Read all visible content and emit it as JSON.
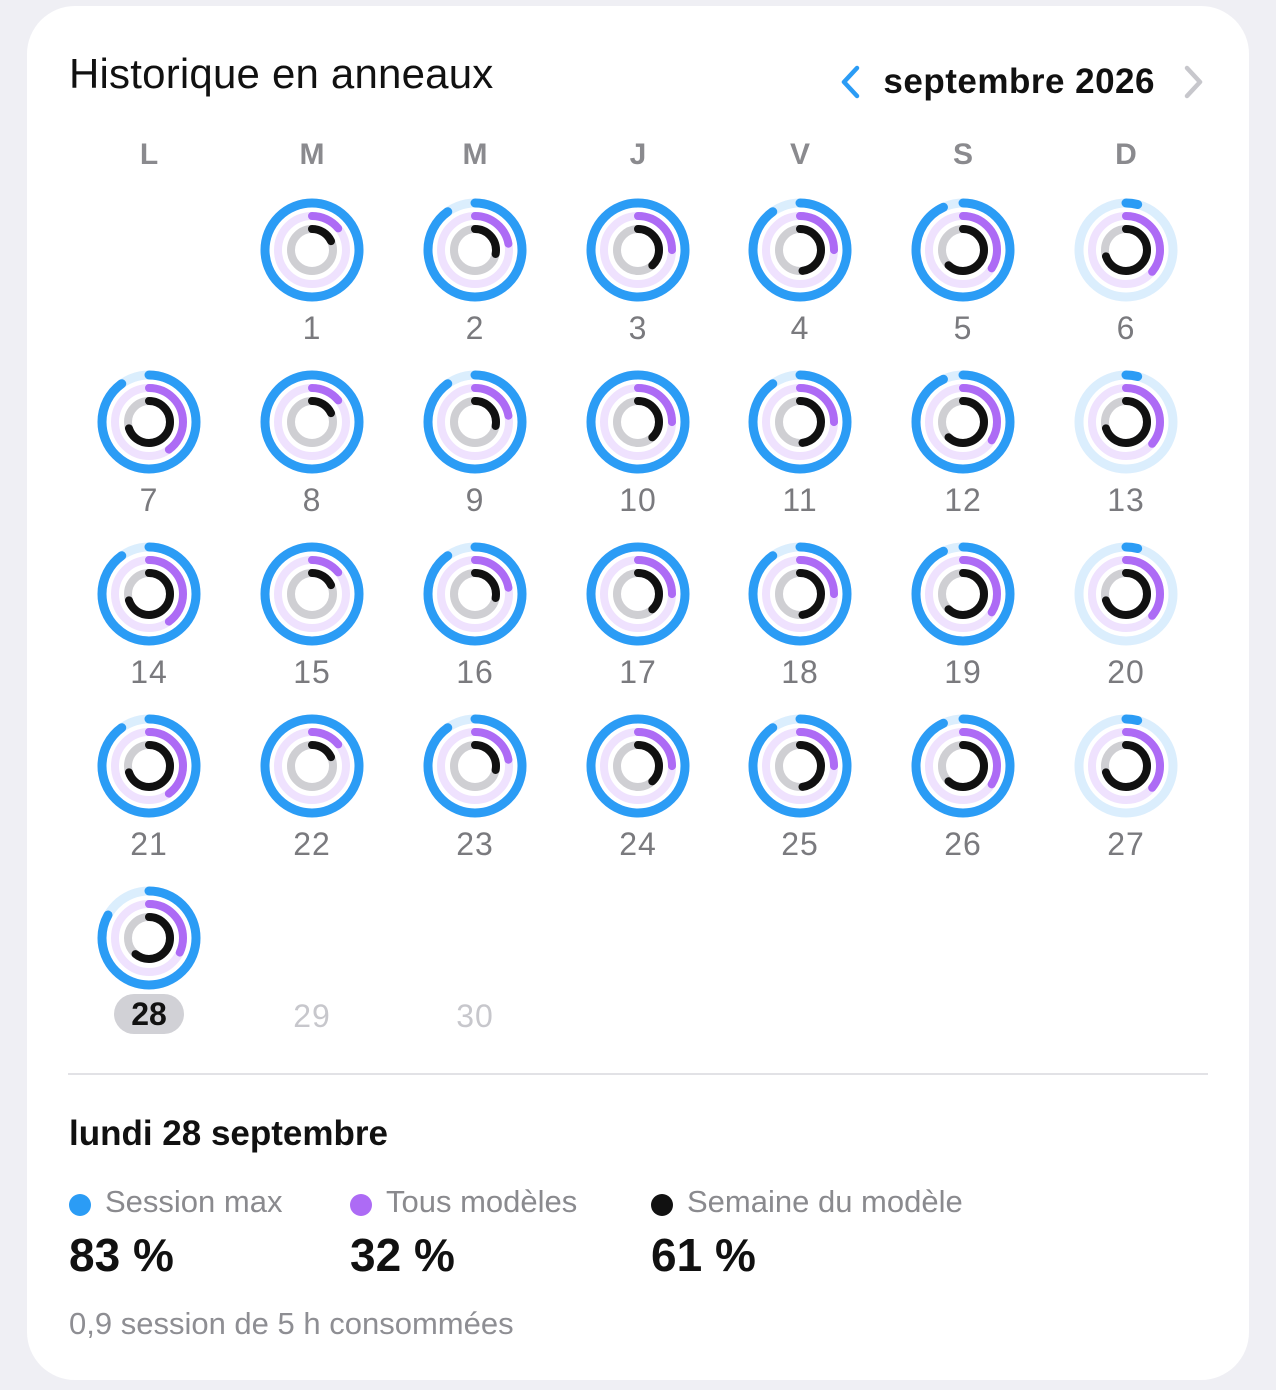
{
  "card": {
    "title": "Historique en anneaux",
    "month_label": "septembre 2026",
    "prev_icon": "chevron-left-icon",
    "next_icon": "chevron-right-icon"
  },
  "weekdays": [
    "L",
    "M",
    "M",
    "J",
    "V",
    "S",
    "D"
  ],
  "colors": {
    "session": "#2b9cf5",
    "session_track": "#dbeefd",
    "models": "#ad6bf5",
    "models_track": "#efe2fe",
    "week": "#111111",
    "week_track": "#cfcfd3"
  },
  "days": [
    {
      "day": "1",
      "session": 1.0,
      "models": 0.14,
      "week": 0.18
    },
    {
      "day": "2",
      "session": 0.9,
      "models": 0.22,
      "week": 0.28
    },
    {
      "day": "3",
      "session": 1.0,
      "models": 0.25,
      "week": 0.38
    },
    {
      "day": "4",
      "session": 0.9,
      "models": 0.25,
      "week": 0.48
    },
    {
      "day": "5",
      "session": 0.93,
      "models": 0.34,
      "week": 0.62
    },
    {
      "day": "6",
      "session": 0.04,
      "models": 0.36,
      "week": 0.7
    },
    {
      "day": "7",
      "session": 0.9,
      "models": 0.4,
      "week": 0.7
    },
    {
      "day": "8",
      "session": 1.0,
      "models": 0.14,
      "week": 0.18
    },
    {
      "day": "9",
      "session": 0.9,
      "models": 0.22,
      "week": 0.28
    },
    {
      "day": "10",
      "session": 1.0,
      "models": 0.25,
      "week": 0.38
    },
    {
      "day": "11",
      "session": 0.9,
      "models": 0.25,
      "week": 0.48
    },
    {
      "day": "12",
      "session": 0.93,
      "models": 0.34,
      "week": 0.62
    },
    {
      "day": "13",
      "session": 0.04,
      "models": 0.36,
      "week": 0.7
    },
    {
      "day": "14",
      "session": 0.9,
      "models": 0.4,
      "week": 0.7
    },
    {
      "day": "15",
      "session": 1.0,
      "models": 0.14,
      "week": 0.18
    },
    {
      "day": "16",
      "session": 0.9,
      "models": 0.22,
      "week": 0.28
    },
    {
      "day": "17",
      "session": 1.0,
      "models": 0.25,
      "week": 0.38
    },
    {
      "day": "18",
      "session": 0.9,
      "models": 0.25,
      "week": 0.48
    },
    {
      "day": "19",
      "session": 0.93,
      "models": 0.34,
      "week": 0.62
    },
    {
      "day": "20",
      "session": 0.04,
      "models": 0.36,
      "week": 0.7
    },
    {
      "day": "21",
      "session": 0.9,
      "models": 0.4,
      "week": 0.7
    },
    {
      "day": "22",
      "session": 1.0,
      "models": 0.14,
      "week": 0.18
    },
    {
      "day": "23",
      "session": 0.9,
      "models": 0.22,
      "week": 0.28
    },
    {
      "day": "24",
      "session": 1.0,
      "models": 0.25,
      "week": 0.38
    },
    {
      "day": "25",
      "session": 0.9,
      "models": 0.25,
      "week": 0.48
    },
    {
      "day": "26",
      "session": 0.93,
      "models": 0.34,
      "week": 0.62
    },
    {
      "day": "27",
      "session": 0.04,
      "models": 0.36,
      "week": 0.7
    },
    {
      "day": "28",
      "session": 0.83,
      "models": 0.32,
      "week": 0.61,
      "today": true
    }
  ],
  "future_days": [
    "29",
    "30"
  ],
  "detail": {
    "date_label": "lundi 28 septembre",
    "metrics": [
      {
        "label": "Session max",
        "value": "83 %",
        "color": "#2b9cf5"
      },
      {
        "label": "Tous modèles",
        "value": "32 %",
        "color": "#ad6bf5"
      },
      {
        "label": "Semaine du modèle",
        "value": "61 %",
        "color": "#111111"
      }
    ],
    "footnote": "0,9 session de 5 h consommées"
  }
}
